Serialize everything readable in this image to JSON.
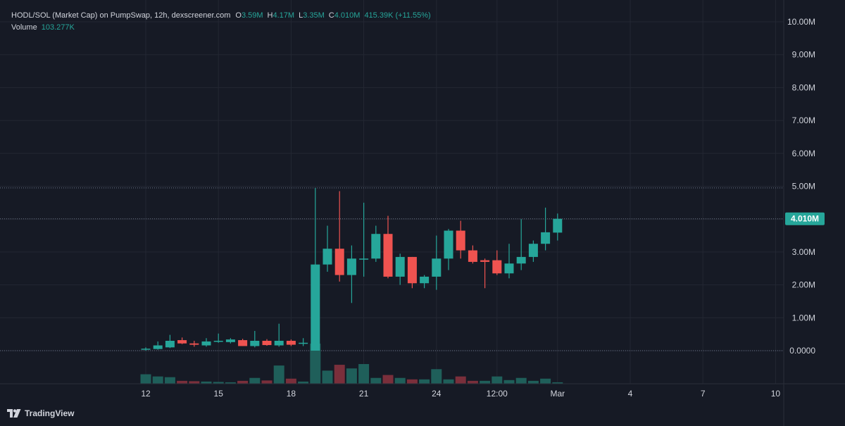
{
  "legend": {
    "symbol": "HODL/SOL (Market Cap) on PumpSwap, 12h, dexscreener.com",
    "open_label": "O",
    "open": "3.59M",
    "high_label": "H",
    "high": "4.17M",
    "low_label": "L",
    "low": "3.35M",
    "close_label": "C",
    "close": "4.010M",
    "change": "415.39K (+11.55%)",
    "volume_label": "Volume",
    "volume": "103.277K"
  },
  "watermark": "TradingView",
  "colors": {
    "background": "#161a25",
    "grid": "#232733",
    "up": "#26a69a",
    "down": "#ef5350",
    "up_volume": "#1f5f5a",
    "down_volume": "#7a2f3b",
    "text": "#d1d4dc"
  },
  "chart_data": {
    "type": "candlestick",
    "title": "",
    "xlabel": "",
    "ylabel": "",
    "ylim": [
      0,
      10000000
    ],
    "y_ticks": [
      "10.00M",
      "9.00M",
      "8.00M",
      "7.00M",
      "6.00M",
      "5.00M",
      "4.00M",
      "3.00M",
      "2.00M",
      "1.00M",
      "0.0000"
    ],
    "x_ticks": [
      {
        "label": "12",
        "index": 0
      },
      {
        "label": "15",
        "index": 6
      },
      {
        "label": "18",
        "index": 12
      },
      {
        "label": "21",
        "index": 18
      },
      {
        "label": "24",
        "index": 24
      },
      {
        "label": "12:00",
        "index": 29
      },
      {
        "label": "Mar",
        "index": 34
      },
      {
        "label": "4",
        "index": 40
      },
      {
        "label": "7",
        "index": 46
      },
      {
        "label": "10",
        "index": 52
      }
    ],
    "price_label": "4.010M",
    "price_level": 4010000,
    "horizontal_lines": [
      4950000,
      4010000,
      0
    ],
    "candles": [
      {
        "o": 0.04,
        "h": 0.1,
        "l": 0.0,
        "c": 0.06
      },
      {
        "o": 0.05,
        "h": 0.28,
        "l": 0.03,
        "c": 0.16
      },
      {
        "o": 0.1,
        "h": 0.48,
        "l": 0.08,
        "c": 0.3
      },
      {
        "o": 0.32,
        "h": 0.4,
        "l": 0.2,
        "c": 0.22
      },
      {
        "o": 0.22,
        "h": 0.3,
        "l": 0.12,
        "c": 0.18
      },
      {
        "o": 0.16,
        "h": 0.38,
        "l": 0.12,
        "c": 0.28
      },
      {
        "o": 0.28,
        "h": 0.52,
        "l": 0.24,
        "c": 0.3
      },
      {
        "o": 0.26,
        "h": 0.38,
        "l": 0.22,
        "c": 0.34
      },
      {
        "o": 0.32,
        "h": 0.36,
        "l": 0.14,
        "c": 0.14
      },
      {
        "o": 0.14,
        "h": 0.6,
        "l": 0.1,
        "c": 0.3
      },
      {
        "o": 0.3,
        "h": 0.35,
        "l": 0.15,
        "c": 0.17
      },
      {
        "o": 0.16,
        "h": 0.82,
        "l": 0.12,
        "c": 0.3
      },
      {
        "o": 0.3,
        "h": 0.34,
        "l": 0.14,
        "c": 0.18
      },
      {
        "o": 0.22,
        "h": 0.38,
        "l": 0.14,
        "c": 0.24
      },
      {
        "o": 0.0,
        "h": 4.95,
        "l": 0.0,
        "c": 2.62
      },
      {
        "o": 2.62,
        "h": 3.8,
        "l": 2.4,
        "c": 3.1
      },
      {
        "o": 3.1,
        "h": 4.85,
        "l": 2.1,
        "c": 2.3
      },
      {
        "o": 2.3,
        "h": 3.2,
        "l": 1.45,
        "c": 2.8
      },
      {
        "o": 2.8,
        "h": 4.5,
        "l": 2.25,
        "c": 2.8
      },
      {
        "o": 2.8,
        "h": 3.8,
        "l": 2.7,
        "c": 3.55
      },
      {
        "o": 3.55,
        "h": 4.1,
        "l": 2.2,
        "c": 2.25
      },
      {
        "o": 2.25,
        "h": 2.95,
        "l": 2.0,
        "c": 2.85
      },
      {
        "o": 2.85,
        "h": 2.85,
        "l": 1.9,
        "c": 2.05
      },
      {
        "o": 2.05,
        "h": 2.3,
        "l": 1.9,
        "c": 2.25
      },
      {
        "o": 2.25,
        "h": 3.5,
        "l": 1.85,
        "c": 2.8
      },
      {
        "o": 2.8,
        "h": 3.7,
        "l": 2.45,
        "c": 3.65
      },
      {
        "o": 3.65,
        "h": 3.95,
        "l": 2.8,
        "c": 3.05
      },
      {
        "o": 3.05,
        "h": 3.2,
        "l": 2.65,
        "c": 2.7
      },
      {
        "o": 2.75,
        "h": 2.8,
        "l": 1.9,
        "c": 2.7
      },
      {
        "o": 2.75,
        "h": 3.05,
        "l": 2.3,
        "c": 2.35
      },
      {
        "o": 2.35,
        "h": 3.25,
        "l": 2.2,
        "c": 2.65
      },
      {
        "o": 2.65,
        "h": 4.0,
        "l": 2.45,
        "c": 2.85
      },
      {
        "o": 2.85,
        "h": 3.35,
        "l": 2.7,
        "c": 3.25
      },
      {
        "o": 3.25,
        "h": 4.35,
        "l": 3.05,
        "c": 3.6
      },
      {
        "o": 3.59,
        "h": 4.17,
        "l": 3.35,
        "c": 4.01
      }
    ],
    "volume": [
      {
        "v": 13.0,
        "up": true
      },
      {
        "v": 10.0,
        "up": true
      },
      {
        "v": 9.0,
        "up": true
      },
      {
        "v": 4.0,
        "up": false
      },
      {
        "v": 3.5,
        "up": false
      },
      {
        "v": 3.0,
        "up": true
      },
      {
        "v": 2.5,
        "up": true
      },
      {
        "v": 2.0,
        "up": true
      },
      {
        "v": 4.0,
        "up": false
      },
      {
        "v": 8.0,
        "up": true
      },
      {
        "v": 4.5,
        "up": false
      },
      {
        "v": 25.0,
        "up": true
      },
      {
        "v": 7.0,
        "up": false
      },
      {
        "v": 3.0,
        "up": true
      },
      {
        "v": 55.0,
        "up": true
      },
      {
        "v": 18.0,
        "up": true
      },
      {
        "v": 26.0,
        "up": false
      },
      {
        "v": 21.0,
        "up": true
      },
      {
        "v": 27.0,
        "up": true
      },
      {
        "v": 8.0,
        "up": true
      },
      {
        "v": 12.0,
        "up": false
      },
      {
        "v": 8.0,
        "up": true
      },
      {
        "v": 6.0,
        "up": false
      },
      {
        "v": 6.0,
        "up": true
      },
      {
        "v": 20.0,
        "up": true
      },
      {
        "v": 6.0,
        "up": true
      },
      {
        "v": 10.0,
        "up": false
      },
      {
        "v": 4.0,
        "up": false
      },
      {
        "v": 4.0,
        "up": true
      },
      {
        "v": 10.0,
        "up": true
      },
      {
        "v": 5.0,
        "up": true
      },
      {
        "v": 8.0,
        "up": true
      },
      {
        "v": 4.0,
        "up": true
      },
      {
        "v": 7.0,
        "up": true
      },
      {
        "v": 2.0,
        "up": true
      }
    ]
  }
}
